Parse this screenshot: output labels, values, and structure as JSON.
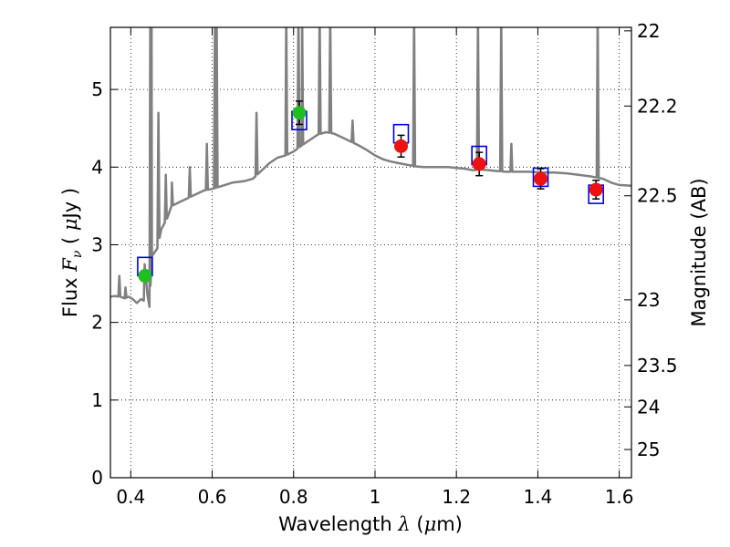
{
  "chart_data": {
    "type": "scatter",
    "xlabel": "Wavelength  λ (μm)",
    "ylabel": "Flux  F_ν  ( μJy )",
    "ylabel_parts": [
      "Flux ",
      "F",
      "ν",
      " ( ",
      "μ",
      "Jy )"
    ],
    "xlabel_parts": [
      "Wavelength  ",
      "λ",
      " (",
      "μ",
      "m)"
    ],
    "y2label": "Magnitude (AB)",
    "xlim": [
      0.35,
      1.63
    ],
    "ylim": [
      0,
      5.8
    ],
    "grid": true,
    "x_ticks": [
      {
        "value": 0.4,
        "label": "0.4"
      },
      {
        "value": 0.6,
        "label": "0.6"
      },
      {
        "value": 0.8,
        "label": "0.8"
      },
      {
        "value": 1.0,
        "label": "1"
      },
      {
        "value": 1.2,
        "label": "1.2"
      },
      {
        "value": 1.4,
        "label": "1.4"
      },
      {
        "value": 1.6,
        "label": "1.6"
      }
    ],
    "y_ticks": [
      {
        "value": 0,
        "label": "0"
      },
      {
        "value": 1,
        "label": "1"
      },
      {
        "value": 2,
        "label": "2"
      },
      {
        "value": 3,
        "label": "3"
      },
      {
        "value": 4,
        "label": "4"
      },
      {
        "value": 5,
        "label": "5"
      }
    ],
    "mag_ticks": [
      {
        "value": 22,
        "label": "22"
      },
      {
        "value": 22.2,
        "label": "22.2"
      },
      {
        "value": 22.5,
        "label": "22.5"
      },
      {
        "value": 23,
        "label": "23"
      },
      {
        "value": 23.5,
        "label": "23.5"
      },
      {
        "value": 24,
        "label": "24"
      },
      {
        "value": 25,
        "label": "25"
      }
    ],
    "observed_optical": {
      "color": "#1fbf1f",
      "points": [
        {
          "x": 0.435,
          "y": 2.6,
          "err": 0.06
        },
        {
          "x": 0.814,
          "y": 4.7,
          "err": 0.15
        }
      ]
    },
    "observed_nir": {
      "color": "#ee1111",
      "points": [
        {
          "x": 1.064,
          "y": 4.27,
          "err": 0.14
        },
        {
          "x": 1.256,
          "y": 4.04,
          "err": 0.15
        },
        {
          "x": 1.407,
          "y": 3.85,
          "err": 0.13
        },
        {
          "x": 1.543,
          "y": 3.71,
          "err": 0.12
        }
      ]
    },
    "model_photometry": {
      "color": "#0000ee",
      "points": [
        {
          "x": 0.435,
          "y": 2.72
        },
        {
          "x": 0.814,
          "y": 4.6
        },
        {
          "x": 1.064,
          "y": 4.43
        },
        {
          "x": 1.256,
          "y": 4.15
        },
        {
          "x": 1.407,
          "y": 3.87
        },
        {
          "x": 1.543,
          "y": 3.65
        }
      ]
    },
    "model_spectrum": {
      "color": "#808080",
      "continuum": [
        [
          0.35,
          2.33
        ],
        [
          0.36,
          2.34
        ],
        [
          0.375,
          2.33
        ],
        [
          0.385,
          2.31
        ],
        [
          0.395,
          2.33
        ],
        [
          0.405,
          2.3
        ],
        [
          0.415,
          2.25
        ],
        [
          0.425,
          2.3
        ],
        [
          0.432,
          2.28
        ],
        [
          0.437,
          2.6
        ],
        [
          0.441,
          2.35
        ],
        [
          0.446,
          2.2
        ],
        [
          0.452,
          2.85
        ],
        [
          0.458,
          2.9
        ],
        [
          0.465,
          2.95
        ],
        [
          0.475,
          3.2
        ],
        [
          0.49,
          3.35
        ],
        [
          0.5,
          3.5
        ],
        [
          0.52,
          3.55
        ],
        [
          0.54,
          3.6
        ],
        [
          0.56,
          3.65
        ],
        [
          0.58,
          3.7
        ],
        [
          0.6,
          3.72
        ],
        [
          0.62,
          3.75
        ],
        [
          0.65,
          3.8
        ],
        [
          0.68,
          3.82
        ],
        [
          0.7,
          3.85
        ],
        [
          0.72,
          3.95
        ],
        [
          0.74,
          4.05
        ],
        [
          0.76,
          4.12
        ],
        [
          0.78,
          4.15
        ],
        [
          0.8,
          4.2
        ],
        [
          0.82,
          4.28
        ],
        [
          0.84,
          4.35
        ],
        [
          0.86,
          4.42
        ],
        [
          0.88,
          4.45
        ],
        [
          0.9,
          4.43
        ],
        [
          0.92,
          4.38
        ],
        [
          0.94,
          4.33
        ],
        [
          0.96,
          4.28
        ],
        [
          0.98,
          4.22
        ],
        [
          1.0,
          4.15
        ],
        [
          1.02,
          4.1
        ],
        [
          1.04,
          4.07
        ],
        [
          1.06,
          4.05
        ],
        [
          1.08,
          4.03
        ],
        [
          1.1,
          4.01
        ],
        [
          1.12,
          4.0
        ],
        [
          1.15,
          4.0
        ],
        [
          1.18,
          4.0
        ],
        [
          1.2,
          3.99
        ],
        [
          1.22,
          3.98
        ],
        [
          1.24,
          3.96
        ],
        [
          1.26,
          3.97
        ],
        [
          1.28,
          3.96
        ],
        [
          1.3,
          3.95
        ],
        [
          1.32,
          3.94
        ],
        [
          1.35,
          3.94
        ],
        [
          1.38,
          3.94
        ],
        [
          1.41,
          3.93
        ],
        [
          1.44,
          3.93
        ],
        [
          1.47,
          3.92
        ],
        [
          1.5,
          3.9
        ],
        [
          1.53,
          3.88
        ],
        [
          1.56,
          3.85
        ],
        [
          1.58,
          3.8
        ],
        [
          1.6,
          3.77
        ],
        [
          1.63,
          3.76
        ]
      ],
      "emission_lines": [
        {
          "x": 0.372,
          "peak": 2.6
        },
        {
          "x": 0.387,
          "peak": 2.45
        },
        {
          "x": 0.434,
          "peak": 2.75
        },
        {
          "x": 0.448,
          "peak": 6.0
        },
        {
          "x": 0.451,
          "peak": 6.0
        },
        {
          "x": 0.468,
          "peak": 4.7
        },
        {
          "x": 0.486,
          "peak": 3.9
        },
        {
          "x": 0.501,
          "peak": 3.8
        },
        {
          "x": 0.545,
          "peak": 4.0
        },
        {
          "x": 0.587,
          "peak": 4.3
        },
        {
          "x": 0.607,
          "peak": 6.0
        },
        {
          "x": 0.611,
          "peak": 6.0
        },
        {
          "x": 0.709,
          "peak": 4.7
        },
        {
          "x": 0.782,
          "peak": 6.0
        },
        {
          "x": 0.812,
          "peak": 6.0
        },
        {
          "x": 0.821,
          "peak": 6.0
        },
        {
          "x": 0.864,
          "peak": 6.0
        },
        {
          "x": 0.89,
          "peak": 6.0
        },
        {
          "x": 0.945,
          "peak": 4.6
        },
        {
          "x": 1.096,
          "peak": 6.0
        },
        {
          "x": 1.253,
          "peak": 6.0
        },
        {
          "x": 1.31,
          "peak": 6.0
        },
        {
          "x": 1.335,
          "peak": 4.3
        },
        {
          "x": 1.547,
          "peak": 6.0
        }
      ]
    }
  }
}
